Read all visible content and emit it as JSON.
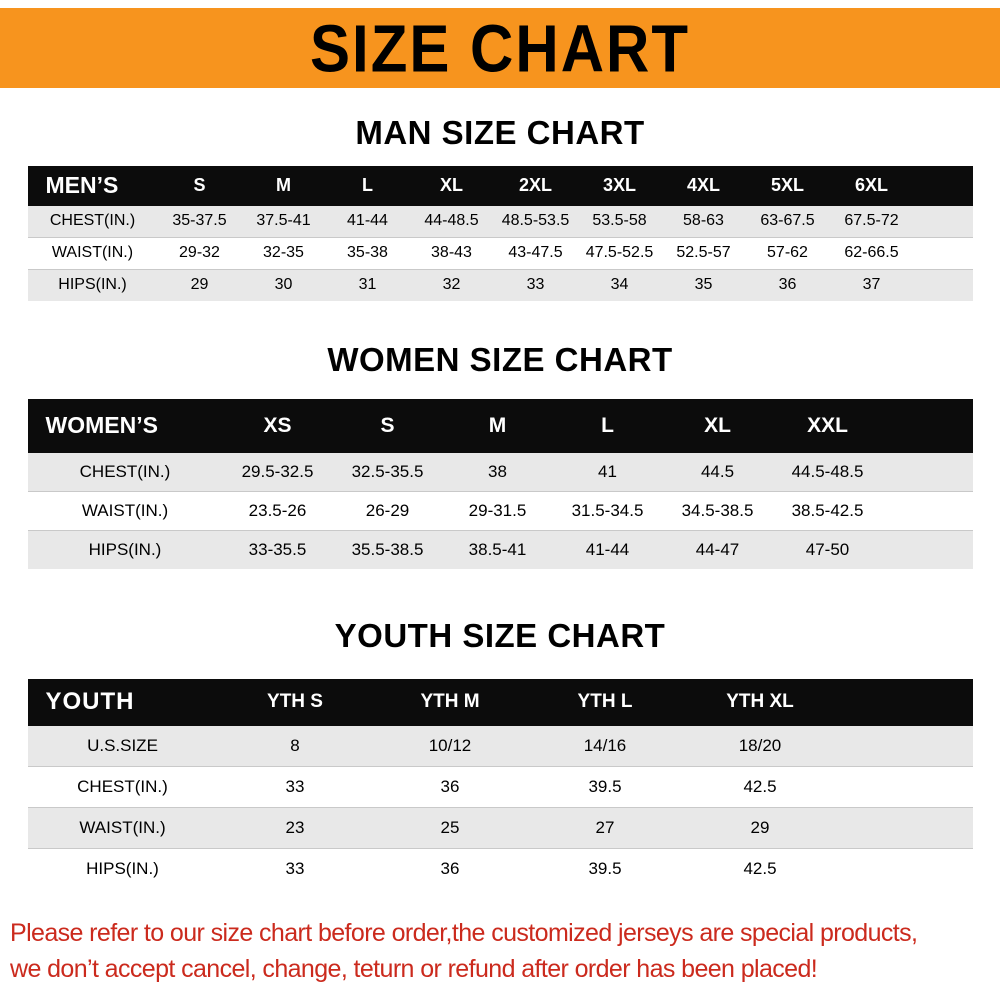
{
  "banner": {
    "title": "SIZE CHART"
  },
  "sections": [
    {
      "heading": "MAN SIZE CHART",
      "table": {
        "header": [
          "MEN’S",
          "S",
          "M",
          "L",
          "XL",
          "2XL",
          "3XL",
          "4XL",
          "5XL",
          "6XL"
        ],
        "rows": [
          [
            "CHEST(IN.)",
            "35-37.5",
            "37.5-41",
            "41-44",
            "44-48.5",
            "48.5-53.5",
            "53.5-58",
            "58-63",
            "63-67.5",
            "67.5-72"
          ],
          [
            "WAIST(IN.)",
            "29-32",
            "32-35",
            "35-38",
            "38-43",
            "43-47.5",
            "47.5-52.5",
            "52.5-57",
            "57-62",
            "62-66.5"
          ],
          [
            "HIPS(IN.)",
            "29",
            "30",
            "31",
            "32",
            "33",
            "34",
            "35",
            "36",
            "37"
          ]
        ]
      }
    },
    {
      "heading": "WOMEN SIZE CHART",
      "table": {
        "header": [
          "WOMEN’S",
          "XS",
          "S",
          "M",
          "L",
          "XL",
          "XXL"
        ],
        "rows": [
          [
            "CHEST(IN.)",
            "29.5-32.5",
            "32.5-35.5",
            "38",
            "41",
            "44.5",
            "44.5-48.5"
          ],
          [
            "WAIST(IN.)",
            "23.5-26",
            "26-29",
            "29-31.5",
            "31.5-34.5",
            "34.5-38.5",
            "38.5-42.5"
          ],
          [
            "HIPS(IN.)",
            "33-35.5",
            "35.5-38.5",
            "38.5-41",
            "41-44",
            "44-47",
            "47-50"
          ]
        ]
      }
    },
    {
      "heading": "YOUTH SIZE CHART",
      "table": {
        "header": [
          "YOUTH",
          "YTH S",
          "YTH M",
          "YTH L",
          "YTH XL"
        ],
        "rows": [
          [
            "U.S.SIZE",
            "8",
            "10/12",
            "14/16",
            "18/20"
          ],
          [
            "CHEST(IN.)",
            "33",
            "36",
            "39.5",
            "42.5"
          ],
          [
            "WAIST(IN.)",
            "23",
            "25",
            "27",
            "29"
          ],
          [
            "HIPS(IN.)",
            "33",
            "36",
            "39.5",
            "42.5"
          ]
        ]
      }
    }
  ],
  "footer": {
    "line1": "Please refer to our size chart before order,the customized jerseys are special products,",
    "line2": "we don’t accept cancel, change, teturn or refund after order has been placed!"
  },
  "colors": {
    "banner_bg": "#f7941e",
    "banner_text": "#000000",
    "heading_text": "#000000",
    "table_header_bg": "#0c0c0c",
    "table_header_text": "#ffffff",
    "row_alt_bg": "#e8e8e8",
    "row_bg": "#ffffff",
    "footer_text": "#cb2a1d"
  }
}
